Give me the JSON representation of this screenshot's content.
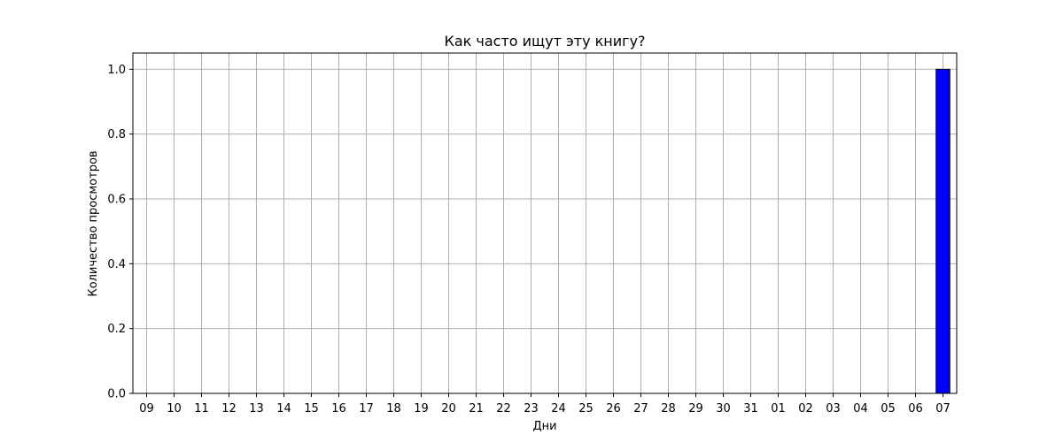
{
  "chart_data": {
    "type": "bar",
    "title": "Как часто ищут эту книгу?",
    "xlabel": "Дни",
    "ylabel": "Количество просмотров",
    "categories": [
      "09",
      "10",
      "11",
      "12",
      "13",
      "14",
      "15",
      "16",
      "17",
      "18",
      "19",
      "20",
      "21",
      "22",
      "23",
      "24",
      "25",
      "26",
      "27",
      "28",
      "29",
      "30",
      "31",
      "01",
      "02",
      "03",
      "04",
      "05",
      "06",
      "07"
    ],
    "values": [
      0,
      0,
      0,
      0,
      0,
      0,
      0,
      0,
      0,
      0,
      0,
      0,
      0,
      0,
      0,
      0,
      0,
      0,
      0,
      0,
      0,
      0,
      0,
      0,
      0,
      0,
      0,
      0,
      0,
      1
    ],
    "ylim": [
      0,
      1.05
    ],
    "yticks": [
      "0.0",
      "0.2",
      "0.4",
      "0.6",
      "0.8",
      "1.0"
    ],
    "grid": true,
    "bar_color": "#0000ff",
    "bar_edge_color": "#000000"
  }
}
